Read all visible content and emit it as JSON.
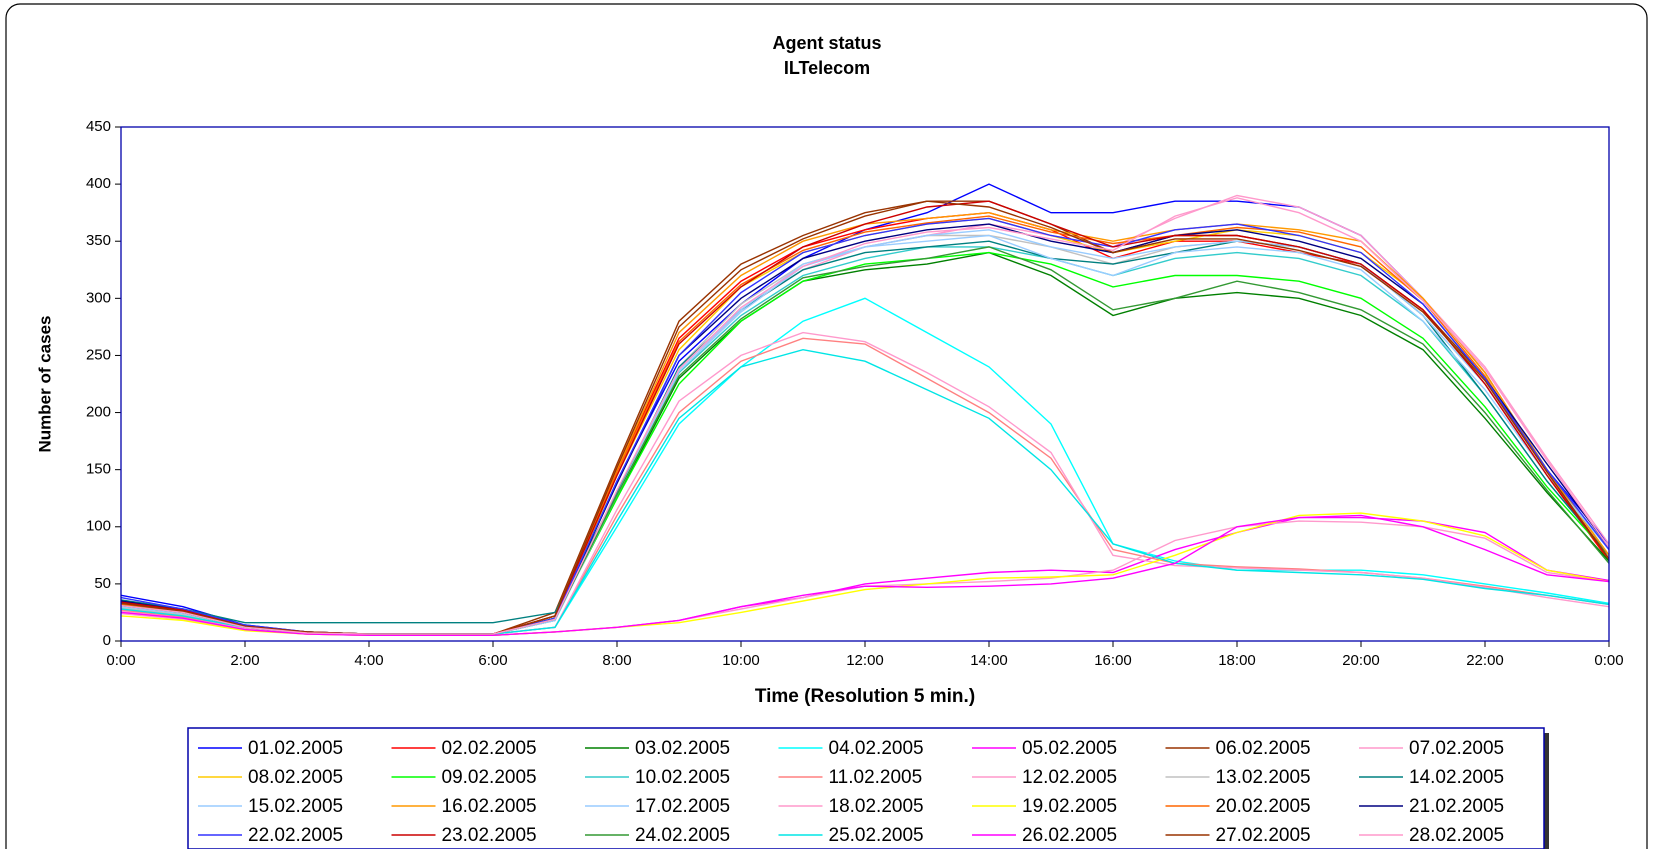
{
  "chart_data": {
    "type": "line",
    "title": "Agent status",
    "subtitle": "ILTelecom",
    "x_label": "Time (Resolution 5 min.)",
    "y_label": "Number of cases",
    "x": [
      0,
      1,
      2,
      3,
      4,
      5,
      6,
      7,
      8,
      9,
      10,
      11,
      12,
      13,
      14,
      15,
      16,
      17,
      18,
      19,
      20,
      21,
      22,
      23,
      24
    ],
    "xlim": [
      0,
      24
    ],
    "xticks": [
      {
        "value": 0,
        "label": "0:00"
      },
      {
        "value": 2,
        "label": "2:00"
      },
      {
        "value": 4,
        "label": "4:00"
      },
      {
        "value": 6,
        "label": "6:00"
      },
      {
        "value": 8,
        "label": "8:00"
      },
      {
        "value": 10,
        "label": "10:00"
      },
      {
        "value": 12,
        "label": "12:00"
      },
      {
        "value": 14,
        "label": "14:00"
      },
      {
        "value": 16,
        "label": "16:00"
      },
      {
        "value": 18,
        "label": "18:00"
      },
      {
        "value": 20,
        "label": "20:00"
      },
      {
        "value": 22,
        "label": "22:00"
      },
      {
        "value": 24,
        "label": "0:00"
      }
    ],
    "ylim": [
      0,
      450
    ],
    "yticks": [
      0,
      50,
      100,
      150,
      200,
      250,
      300,
      350,
      400,
      450
    ],
    "series": [
      {
        "name": "01.02.2005",
        "color": "#0000ff",
        "values": [
          40,
          30,
          14,
          8,
          6,
          6,
          6,
          18,
          140,
          245,
          295,
          335,
          360,
          375,
          400,
          375,
          375,
          385,
          385,
          380,
          355,
          300,
          235,
          150,
          85
        ]
      },
      {
        "name": "02.02.2005",
        "color": "#ff0000",
        "values": [
          32,
          26,
          12,
          7,
          6,
          6,
          6,
          22,
          150,
          265,
          315,
          345,
          360,
          370,
          375,
          360,
          335,
          350,
          350,
          340,
          330,
          290,
          225,
          145,
          70
        ]
      },
      {
        "name": "03.02.2005",
        "color": "#008000",
        "values": [
          30,
          24,
          12,
          7,
          6,
          6,
          6,
          20,
          125,
          230,
          280,
          315,
          325,
          330,
          340,
          320,
          285,
          300,
          305,
          300,
          285,
          255,
          195,
          130,
          70
        ]
      },
      {
        "name": "04.02.2005",
        "color": "#00ffff",
        "values": [
          28,
          22,
          12,
          7,
          6,
          6,
          6,
          12,
          100,
          190,
          240,
          280,
          300,
          270,
          240,
          190,
          85,
          70,
          62,
          62,
          62,
          58,
          50,
          42,
          33
        ]
      },
      {
        "name": "05.02.2005",
        "color": "#ff00ff",
        "values": [
          25,
          20,
          10,
          6,
          5,
          5,
          5,
          8,
          12,
          18,
          30,
          38,
          50,
          55,
          60,
          62,
          60,
          80,
          95,
          108,
          108,
          105,
          95,
          62,
          53
        ]
      },
      {
        "name": "06.02.2005",
        "color": "#993300",
        "values": [
          34,
          27,
          13,
          8,
          6,
          6,
          6,
          25,
          155,
          280,
          330,
          355,
          375,
          385,
          385,
          365,
          340,
          355,
          355,
          345,
          330,
          290,
          230,
          150,
          75
        ]
      },
      {
        "name": "07.02.2005",
        "color": "#ff99cc",
        "values": [
          30,
          24,
          12,
          7,
          6,
          6,
          6,
          20,
          130,
          235,
          290,
          325,
          345,
          355,
          365,
          355,
          345,
          370,
          390,
          380,
          355,
          300,
          240,
          160,
          85
        ]
      },
      {
        "name": "08.02.2005",
        "color": "#ffcc00",
        "values": [
          28,
          22,
          11,
          7,
          6,
          6,
          6,
          18,
          145,
          255,
          310,
          340,
          355,
          365,
          370,
          355,
          340,
          350,
          360,
          355,
          340,
          300,
          235,
          150,
          75
        ]
      },
      {
        "name": "09.02.2005",
        "color": "#00ff00",
        "values": [
          33,
          26,
          13,
          8,
          6,
          6,
          6,
          20,
          125,
          225,
          280,
          315,
          330,
          335,
          340,
          330,
          310,
          320,
          320,
          315,
          300,
          265,
          205,
          135,
          75
        ]
      },
      {
        "name": "10.02.2005",
        "color": "#33cccc",
        "values": [
          30,
          24,
          12,
          7,
          6,
          6,
          6,
          18,
          130,
          235,
          285,
          320,
          335,
          345,
          345,
          335,
          320,
          335,
          340,
          335,
          320,
          280,
          215,
          140,
          75
        ]
      },
      {
        "name": "11.02.2005",
        "color": "#ff8080",
        "values": [
          27,
          21,
          11,
          7,
          6,
          6,
          6,
          12,
          110,
          200,
          245,
          265,
          260,
          230,
          200,
          160,
          80,
          68,
          65,
          63,
          60,
          55,
          48,
          40,
          32
        ]
      },
      {
        "name": "12.02.2005",
        "color": "#ff99cc",
        "values": [
          24,
          19,
          10,
          6,
          5,
          5,
          5,
          8,
          12,
          18,
          28,
          38,
          48,
          50,
          52,
          55,
          62,
          88,
          100,
          105,
          104,
          100,
          90,
          60,
          52
        ]
      },
      {
        "name": "13.02.2005",
        "color": "#c0c0c0",
        "values": [
          29,
          23,
          11,
          7,
          6,
          6,
          6,
          18,
          130,
          240,
          295,
          330,
          345,
          355,
          355,
          345,
          330,
          345,
          350,
          345,
          330,
          285,
          225,
          150,
          80
        ]
      },
      {
        "name": "14.02.2005",
        "color": "#008080",
        "values": [
          36,
          28,
          16,
          16,
          16,
          16,
          16,
          25,
          130,
          240,
          290,
          325,
          340,
          345,
          350,
          335,
          330,
          340,
          350,
          345,
          330,
          285,
          215,
          140,
          75
        ]
      },
      {
        "name": "15.02.2005",
        "color": "#99ccff",
        "values": [
          31,
          25,
          12,
          7,
          6,
          6,
          6,
          18,
          128,
          238,
          290,
          330,
          345,
          350,
          355,
          335,
          320,
          340,
          345,
          340,
          325,
          280,
          220,
          145,
          80
        ]
      },
      {
        "name": "16.02.2005",
        "color": "#ff9900",
        "values": [
          33,
          26,
          13,
          8,
          6,
          6,
          6,
          22,
          150,
          270,
          320,
          350,
          365,
          370,
          375,
          360,
          350,
          360,
          365,
          360,
          350,
          300,
          235,
          150,
          75
        ]
      },
      {
        "name": "17.02.2005",
        "color": "#99ccff",
        "values": [
          30,
          24,
          12,
          7,
          6,
          6,
          6,
          18,
          128,
          236,
          288,
          328,
          345,
          355,
          360,
          345,
          335,
          345,
          350,
          345,
          330,
          285,
          225,
          145,
          80
        ]
      },
      {
        "name": "18.02.2005",
        "color": "#ff99cc",
        "values": [
          26,
          20,
          11,
          7,
          6,
          6,
          6,
          12,
          115,
          210,
          250,
          270,
          262,
          235,
          205,
          165,
          75,
          66,
          64,
          62,
          60,
          55,
          47,
          38,
          30
        ]
      },
      {
        "name": "19.02.2005",
        "color": "#ffff00",
        "values": [
          22,
          18,
          9,
          6,
          5,
          5,
          5,
          8,
          12,
          16,
          25,
          35,
          45,
          50,
          55,
          56,
          58,
          75,
          95,
          110,
          112,
          105,
          92,
          62,
          52
        ]
      },
      {
        "name": "20.02.2005",
        "color": "#ff6600",
        "values": [
          32,
          25,
          12,
          7,
          6,
          6,
          6,
          22,
          148,
          262,
          312,
          342,
          358,
          366,
          372,
          358,
          348,
          355,
          362,
          358,
          345,
          298,
          232,
          148,
          72
        ]
      },
      {
        "name": "21.02.2005",
        "color": "#000080",
        "values": [
          35,
          27,
          13,
          8,
          6,
          6,
          6,
          20,
          138,
          250,
          300,
          335,
          350,
          360,
          365,
          350,
          340,
          355,
          360,
          350,
          335,
          295,
          230,
          155,
          82
        ]
      },
      {
        "name": "22.02.2005",
        "color": "#3333ff",
        "values": [
          38,
          28,
          14,
          8,
          6,
          6,
          6,
          20,
          140,
          250,
          305,
          340,
          355,
          365,
          370,
          355,
          345,
          360,
          365,
          355,
          340,
          295,
          230,
          150,
          80
        ]
      },
      {
        "name": "23.02.2005",
        "color": "#cc0000",
        "values": [
          34,
          27,
          13,
          8,
          6,
          6,
          6,
          22,
          145,
          260,
          310,
          345,
          365,
          380,
          385,
          365,
          345,
          355,
          355,
          345,
          330,
          290,
          225,
          145,
          72
        ]
      },
      {
        "name": "24.02.2005",
        "color": "#339933",
        "values": [
          31,
          25,
          12,
          7,
          6,
          6,
          6,
          19,
          128,
          232,
          282,
          318,
          328,
          335,
          345,
          325,
          290,
          300,
          315,
          305,
          290,
          260,
          200,
          132,
          68
        ]
      },
      {
        "name": "25.02.2005",
        "color": "#00e5e5",
        "values": [
          28,
          22,
          12,
          7,
          6,
          6,
          6,
          12,
          105,
          195,
          240,
          255,
          245,
          220,
          195,
          150,
          85,
          68,
          62,
          60,
          58,
          54,
          46,
          40,
          32
        ]
      },
      {
        "name": "26.02.2005",
        "color": "#ff00ff",
        "values": [
          25,
          20,
          10,
          6,
          5,
          5,
          5,
          8,
          12,
          18,
          30,
          40,
          48,
          47,
          48,
          50,
          55,
          68,
          100,
          108,
          110,
          100,
          80,
          58,
          52
        ]
      },
      {
        "name": "27.02.2005",
        "color": "#993300",
        "values": [
          33,
          26,
          13,
          8,
          6,
          6,
          6,
          22,
          152,
          275,
          325,
          352,
          372,
          385,
          380,
          362,
          340,
          352,
          352,
          342,
          328,
          288,
          228,
          148,
          72
        ]
      },
      {
        "name": "28.02.2005",
        "color": "#ff99cc",
        "values": [
          31,
          25,
          12,
          7,
          6,
          6,
          6,
          19,
          132,
          238,
          292,
          328,
          348,
          358,
          362,
          352,
          342,
          372,
          388,
          375,
          350,
          298,
          238,
          158,
          82
        ]
      }
    ]
  }
}
